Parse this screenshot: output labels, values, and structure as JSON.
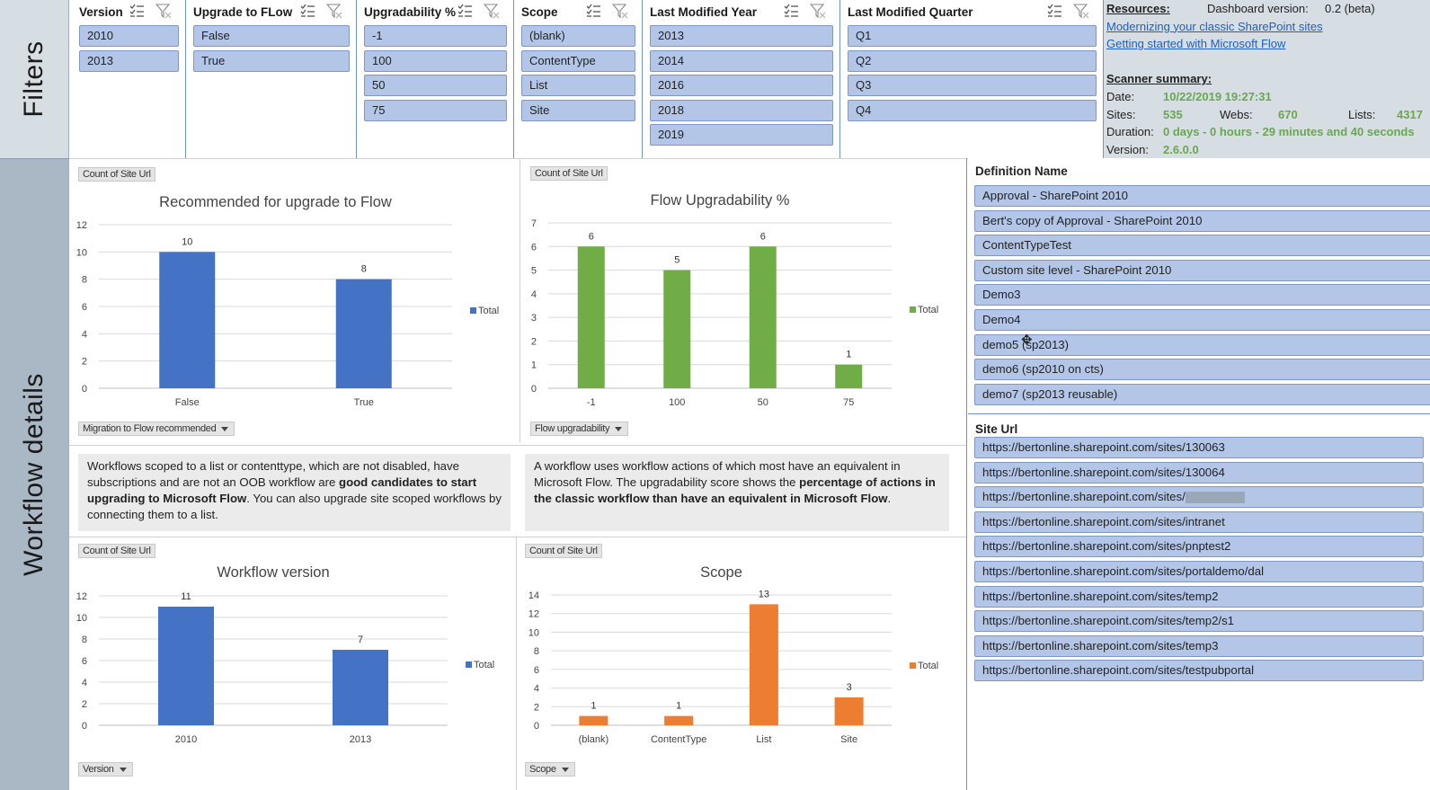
{
  "side": {
    "filters": "Filters",
    "details": "Workflow details"
  },
  "slicers": [
    {
      "title": "Version",
      "items": [
        "2010",
        "2013"
      ]
    },
    {
      "title": "Upgrade to FLow",
      "items": [
        "False",
        "True"
      ]
    },
    {
      "title": "Upgradability %",
      "items": [
        "-1",
        "100",
        "50",
        "75"
      ]
    },
    {
      "title": "Scope",
      "items": [
        "(blank)",
        "ContentType",
        "List",
        "Site"
      ]
    },
    {
      "title": "Last Modified Year",
      "items": [
        "2013",
        "2014",
        "2016",
        "2018",
        "2019"
      ]
    },
    {
      "title": "Last Modified Quarter",
      "items": [
        "Q1",
        "Q2",
        "Q3",
        "Q4"
      ]
    }
  ],
  "resources": {
    "title": "Resources:",
    "dash_label": "Dashboard version:",
    "dash_value": "0.2 (beta)",
    "link1": "Modernizing your classic SharePoint sites",
    "link2": "Getting started with Microsoft Flow",
    "summary_title": "Scanner summary:",
    "date_label": "Date:",
    "date_value": "10/22/2019 19:27:31",
    "sites_label": "Sites:",
    "sites_value": "535",
    "webs_label": "Webs:",
    "webs_value": "670",
    "lists_label": "Lists:",
    "lists_value": "4317",
    "duration_label": "Duration:",
    "duration_value": "0 days - 0 hours - 29 minutes and 40 seconds",
    "version_label": "Version:",
    "version_value": "2.6.0.0"
  },
  "count_tag": "Count of Site Url",
  "legend_total": "Total",
  "dropdowns": {
    "c1": "Migration to Flow recommended",
    "c2": "Flow upgradability",
    "c3": "Version",
    "c4": "Scope"
  },
  "desc": {
    "left_1": "Workflows scoped to a list or contenttype, which are not disabled, have subscriptions and are not an OOB workflow are ",
    "left_b": "good candidates to start upgrading to Microsoft Flow",
    "left_2": ". You can also upgrade site scoped workflows by connecting them to a list.",
    "right_1": "A workflow uses workflow actions of which most have an equivalent in Microsoft Flow. The upgradability score shows the ",
    "right_b": "percentage of actions in the classic workflow than have an equivalent in Microsoft Flow",
    "right_2": "."
  },
  "lists": {
    "definition_title": "Definition Name",
    "definitions": [
      "Approval - SharePoint 2010",
      "Bert's copy of Approval - SharePoint 2010",
      "ContentTypeTest",
      "Custom site level - SharePoint 2010",
      "Demo3",
      "Demo4",
      "demo5 (sp2013)",
      "demo6 (sp2010 on cts)",
      "demo7 (sp2013 reusable)"
    ],
    "site_title": "Site Url",
    "sites": [
      "https://bertonline.sharepoint.com/sites/130063",
      "https://bertonline.sharepoint.com/sites/130064",
      "https://bertonline.sharepoint.com/sites/",
      "https://bertonline.sharepoint.com/sites/intranet",
      "https://bertonline.sharepoint.com/sites/pnptest2",
      "https://bertonline.sharepoint.com/sites/portaldemo/dal",
      "https://bertonline.sharepoint.com/sites/temp2",
      "https://bertonline.sharepoint.com/sites/temp2/s1",
      "https://bertonline.sharepoint.com/sites/temp3",
      "https://bertonline.sharepoint.com/sites/testpubportal"
    ]
  },
  "colors": {
    "blue": "#4472c4",
    "green": "#70ad47",
    "orange": "#ed7d31"
  },
  "chart_data": [
    {
      "type": "bar",
      "title": "Recommended for upgrade to Flow",
      "categories": [
        "False",
        "True"
      ],
      "series": [
        {
          "name": "Total",
          "values": [
            10,
            8
          ]
        }
      ],
      "ylim": [
        0,
        12
      ],
      "yticks": [
        0,
        2,
        4,
        6,
        8,
        10,
        12
      ],
      "color": "#4472c4",
      "legend": "right"
    },
    {
      "type": "bar",
      "title": "Flow Upgradability %",
      "categories": [
        "-1",
        "100",
        "50",
        "75"
      ],
      "series": [
        {
          "name": "Total",
          "values": [
            6,
            5,
            6,
            1
          ]
        }
      ],
      "ylim": [
        0,
        7
      ],
      "yticks": [
        0,
        1,
        2,
        3,
        4,
        5,
        6,
        7
      ],
      "color": "#70ad47",
      "legend": "right"
    },
    {
      "type": "bar",
      "title": "Workflow version",
      "categories": [
        "2010",
        "2013"
      ],
      "series": [
        {
          "name": "Total",
          "values": [
            11,
            7
          ]
        }
      ],
      "ylim": [
        0,
        12
      ],
      "yticks": [
        0,
        2,
        4,
        6,
        8,
        10,
        12
      ],
      "color": "#4472c4",
      "legend": "right"
    },
    {
      "type": "bar",
      "title": "Scope",
      "categories": [
        "(blank)",
        "ContentType",
        "List",
        "Site"
      ],
      "series": [
        {
          "name": "Total",
          "values": [
            1,
            1,
            13,
            3
          ]
        }
      ],
      "ylim": [
        0,
        14
      ],
      "yticks": [
        0,
        2,
        4,
        6,
        8,
        10,
        12,
        14
      ],
      "color": "#ed7d31",
      "legend": "right"
    }
  ]
}
